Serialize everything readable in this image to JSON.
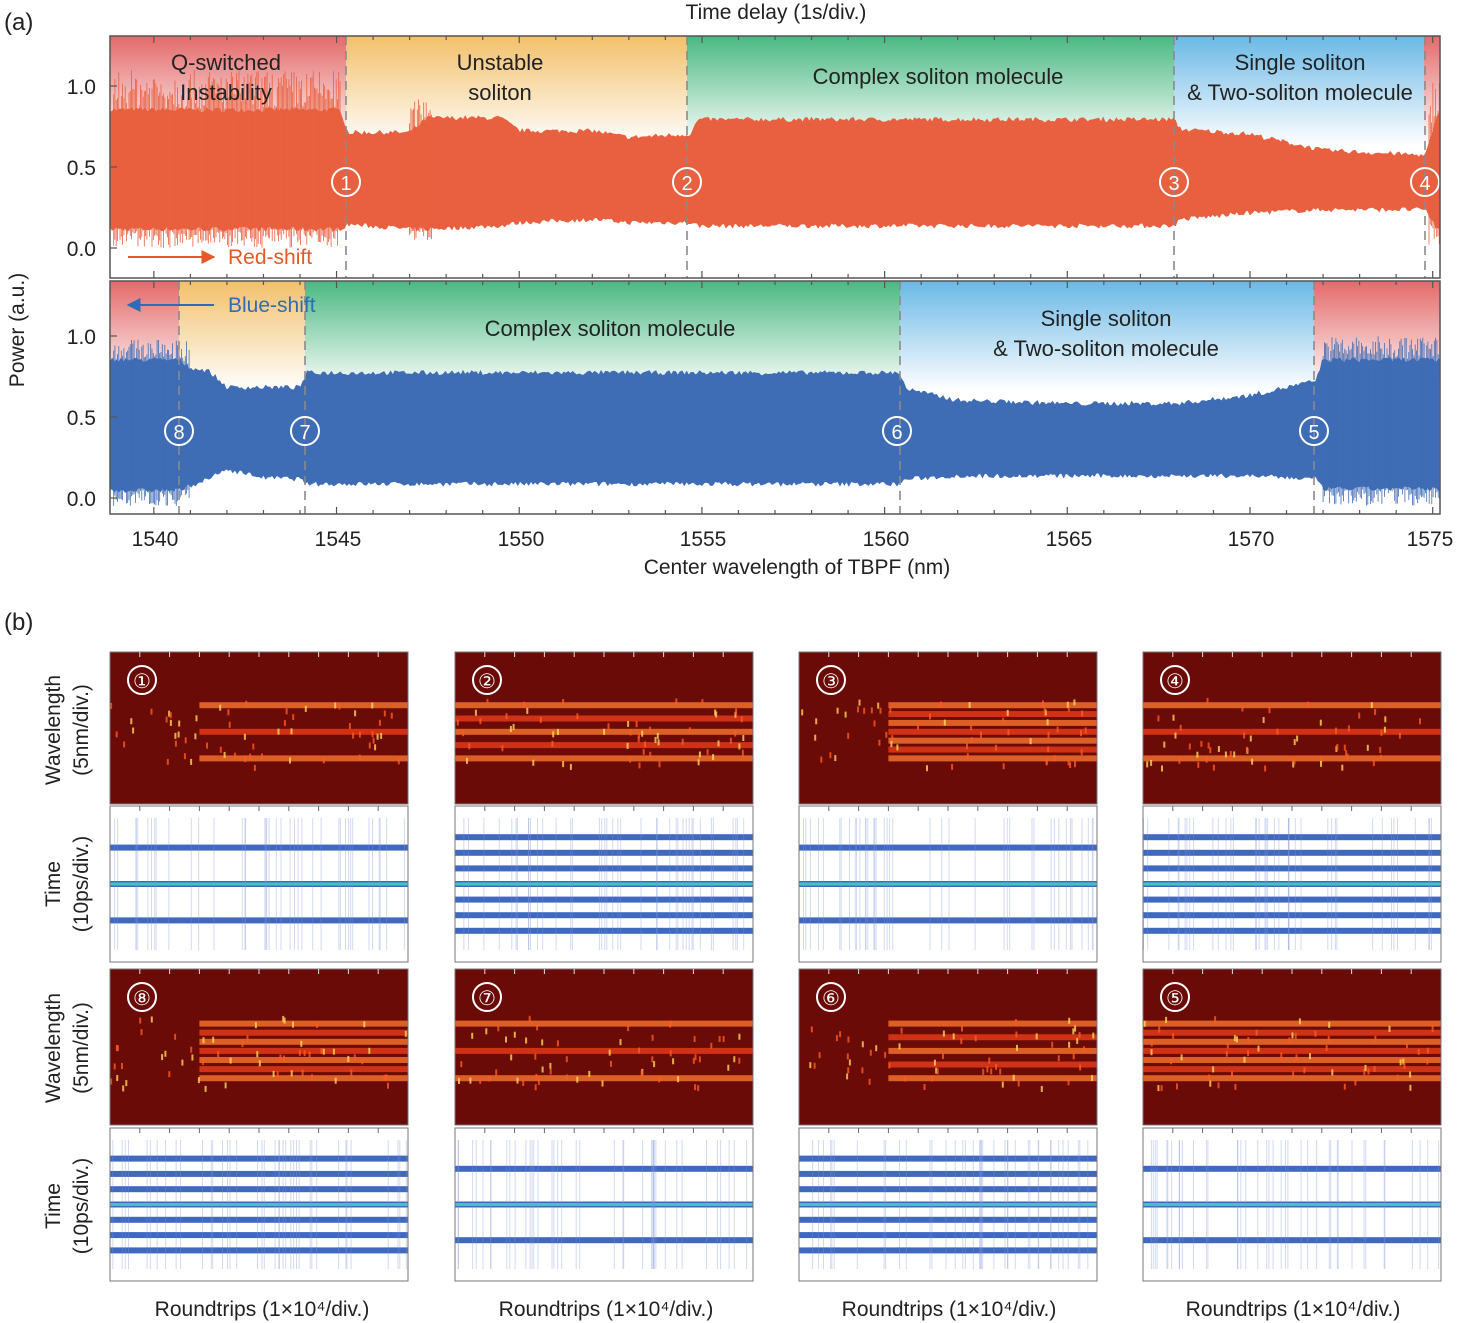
{
  "panel_a": {
    "label": "(a)",
    "top_axis_label": "Time delay (1s/div.)",
    "y_label": "Power (a.u.)",
    "x_label": "Center wavelength of TBPF (nm)",
    "y_ticks": [
      "1.0",
      "0.5",
      "0.0"
    ],
    "x_ticks": [
      "1540",
      "1545",
      "1550",
      "1555",
      "1560",
      "1565",
      "1570",
      "1575"
    ],
    "colors": {
      "red_trace": "#e8603f",
      "blue_trace": "#3f6db5",
      "red_text": "#e45a27",
      "blue_text": "#2f6cb5"
    },
    "upper": {
      "arrow_label": "Red-shift",
      "regions": [
        {
          "line1": "Q-switched",
          "line2": "Instability",
          "color": "#e46a6a"
        },
        {
          "line1": "Unstable",
          "line2": "soliton",
          "color": "#f2c06a"
        },
        {
          "line1": "Complex soliton molecule",
          "line2": "",
          "color": "#4ab882"
        },
        {
          "line1": "Single soliton",
          "line2": "& Two-soliton molecule",
          "color": "#6ab8e6"
        }
      ],
      "markers": [
        "①",
        "②",
        "③",
        "④"
      ]
    },
    "lower": {
      "arrow_label": "Blue-shift",
      "regions": [
        {
          "line1": "Complex soliton molecule",
          "line2": ""
        },
        {
          "line1": "Single soliton",
          "line2": "& Two-soliton molecule"
        }
      ],
      "markers": [
        "⑧",
        "⑦",
        "⑥",
        "⑤"
      ]
    }
  },
  "panel_b": {
    "label": "(b)",
    "wavelength_label": "Wavelength",
    "wavelength_unit": "(5nm/div.)",
    "time_label": "Time",
    "time_unit": "(10ps/div.)",
    "x_label": "Roundtrips (1×10⁴/div.)",
    "top_row_markers": [
      "①",
      "②",
      "③",
      "④"
    ],
    "bottom_row_markers": [
      "⑧",
      "⑦",
      "⑥",
      "⑤"
    ]
  },
  "chart_data": [
    {
      "type": "area",
      "title": "",
      "xlabel": "Center wavelength of TBPF (nm)",
      "ylabel": "Power (a.u.)",
      "top_xlabel": "Time delay (1s/div.)",
      "xlim": [
        1538.8,
        1575.2
      ],
      "ylim": [
        -0.1,
        1.3
      ],
      "x_boundaries": [
        1545.2,
        1554.8,
        1568.0,
        1574.9
      ],
      "series": [
        {
          "name": "Red-shift",
          "x": [
            1538.8,
            1541,
            1545.1,
            1545.3,
            1547,
            1547.5,
            1549.5,
            1550,
            1552,
            1553,
            1554.7,
            1554.9,
            1560,
            1567.9,
            1568.1,
            1570,
            1572,
            1574.8,
            1575.2
          ],
          "upper": [
            0.85,
            0.85,
            0.85,
            0.71,
            0.71,
            0.8,
            0.8,
            0.72,
            0.72,
            0.68,
            0.7,
            0.79,
            0.79,
            0.79,
            0.73,
            0.7,
            0.6,
            0.57,
            0.85
          ],
          "lower": [
            0.12,
            0.12,
            0.12,
            0.15,
            0.12,
            0.12,
            0.14,
            0.16,
            0.18,
            0.16,
            0.16,
            0.14,
            0.14,
            0.14,
            0.18,
            0.22,
            0.24,
            0.24,
            0.1
          ]
        },
        {
          "name": "Blue-shift",
          "x": [
            1538.8,
            1540.7,
            1541,
            1541.5,
            1542,
            1543,
            1544.0,
            1544.2,
            1550,
            1555,
            1560.4,
            1560.6,
            1562,
            1565,
            1568,
            1570,
            1571.8,
            1572.0,
            1575.2
          ],
          "upper": [
            0.85,
            0.85,
            0.8,
            0.78,
            0.68,
            0.68,
            0.68,
            0.77,
            0.77,
            0.77,
            0.77,
            0.67,
            0.6,
            0.58,
            0.58,
            0.63,
            0.72,
            0.85,
            0.85
          ],
          "lower": [
            0.05,
            0.05,
            0.08,
            0.12,
            0.18,
            0.13,
            0.12,
            0.09,
            0.09,
            0.09,
            0.09,
            0.12,
            0.14,
            0.14,
            0.14,
            0.14,
            0.12,
            0.06,
            0.06
          ]
        }
      ],
      "legend": "none",
      "grid": false
    }
  ]
}
